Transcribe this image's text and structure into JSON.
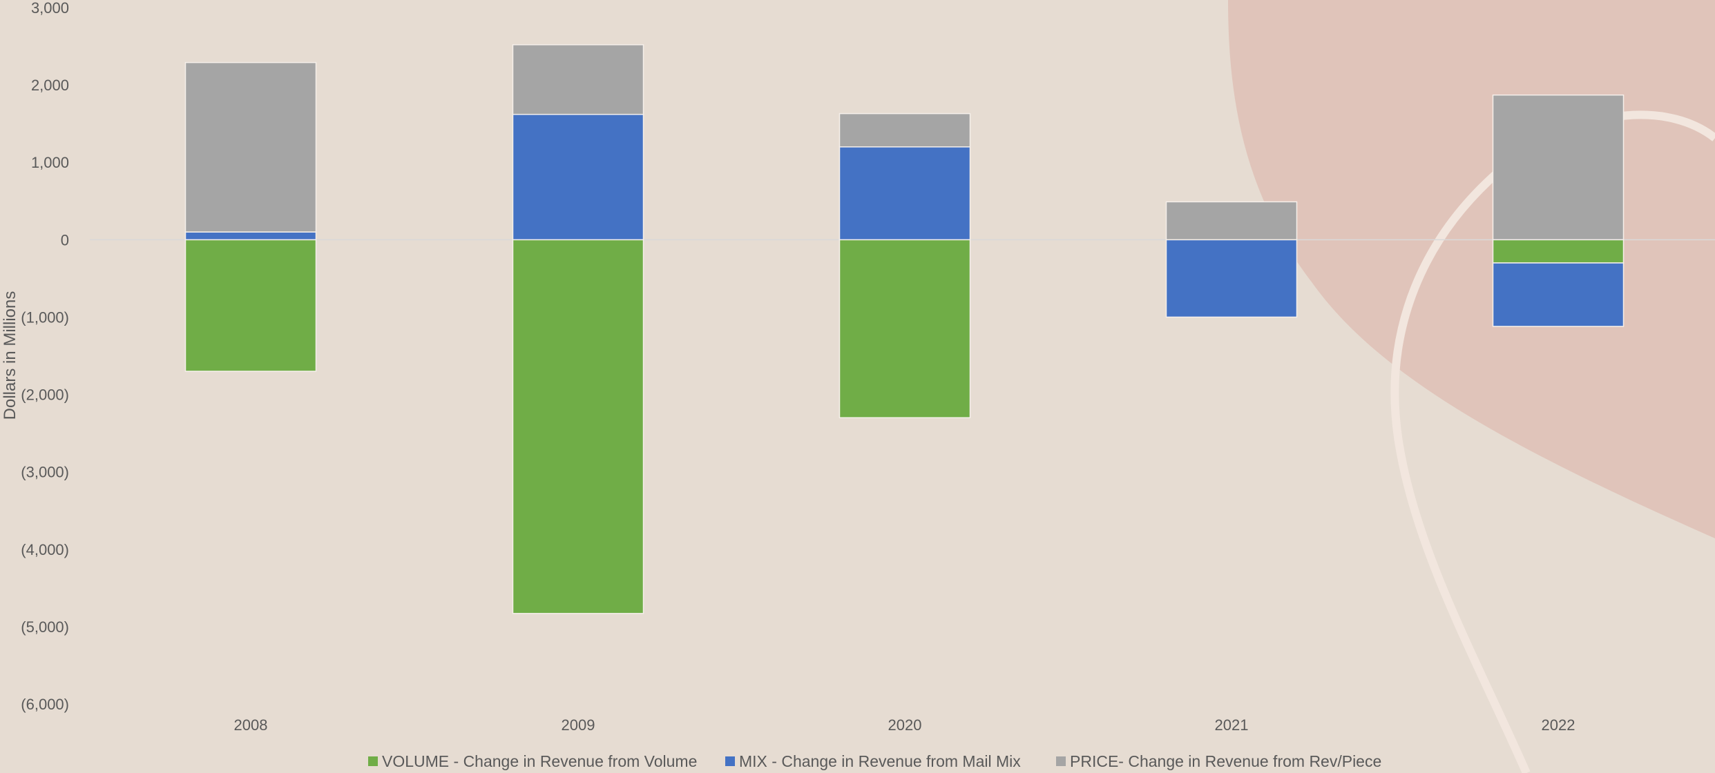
{
  "chart_data": {
    "type": "bar",
    "stacked": true,
    "categories": [
      "2008",
      "2009",
      "2020",
      "2021",
      "2022"
    ],
    "series": [
      {
        "name": "VOLUME - Change in Revenue from Volume",
        "color": "#70AD47",
        "values": [
          -1700,
          -4830,
          -2300,
          0,
          -300
        ]
      },
      {
        "name": "MIX - Change in Revenue from Mail Mix",
        "color": "#4472C4",
        "values": [
          100,
          1620,
          1200,
          -1000,
          -820
        ]
      },
      {
        "name": "PRICE- Change in Revenue from Rev/Piece",
        "color": "#A5A5A5",
        "values": [
          2190,
          900,
          430,
          490,
          1870
        ]
      }
    ],
    "ylabel": "Dollars in Millions",
    "xlabel": "",
    "title": "",
    "ylim": [
      -6000,
      3000
    ],
    "yticks": [
      3000,
      2000,
      1000,
      0,
      -1000,
      -2000,
      -3000,
      -4000,
      -5000,
      -6000
    ],
    "ytick_labels": [
      "3,000",
      "2,000",
      "1,000",
      "0",
      "(1,000)",
      "(2,000)",
      "(3,000)",
      "(4,000)",
      "(5,000)",
      "(6,000)"
    ],
    "legend_position": "bottom",
    "grid": false,
    "zero_line": true,
    "background_color": "#E6DCD2",
    "decor_color": "#E0C4BA"
  }
}
